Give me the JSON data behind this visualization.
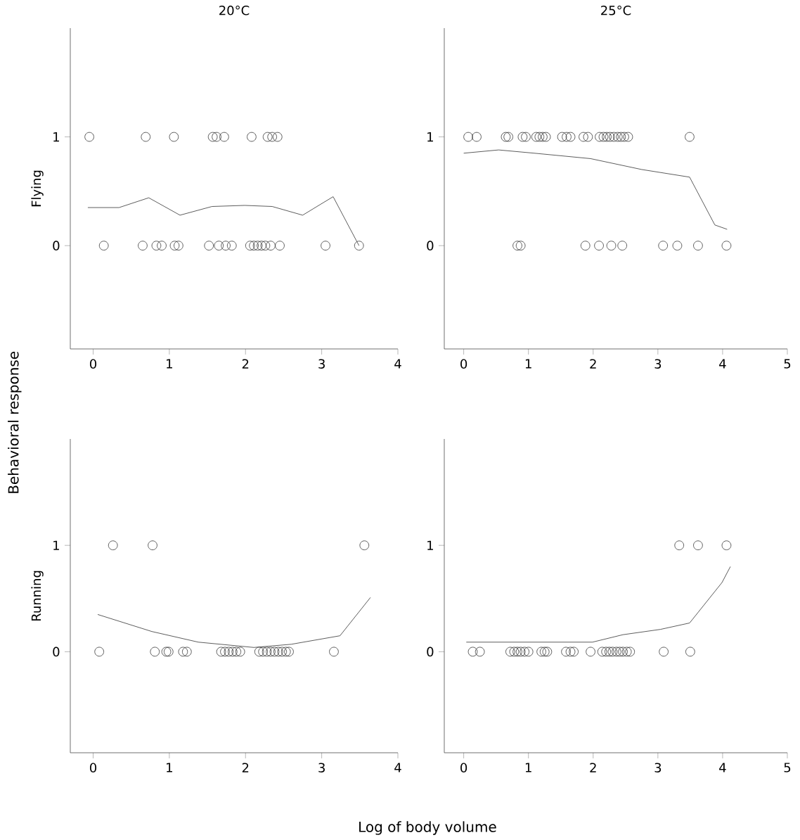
{
  "chart_data": [
    {
      "type": "scatter",
      "title": "20°C",
      "ylabel": "Flying",
      "annotations": [
        "Behavioral response"
      ],
      "xlim": [
        -0.3,
        4
      ],
      "ylim": [
        -0.95,
        2
      ],
      "xticks": [
        0,
        1,
        2,
        3,
        4
      ],
      "yticks": [
        0,
        1
      ],
      "series": [
        {
          "type": "scatter",
          "marker": "circle",
          "color": "#333333",
          "x": [
            -0.05,
            0.69,
            1.06,
            1.57,
            1.62,
            1.72,
            2.08,
            2.29,
            2.35,
            2.42,
            0.14,
            0.65,
            0.83,
            0.9,
            1.07,
            1.12,
            1.52,
            1.65,
            1.74,
            1.82,
            2.06,
            2.11,
            2.16,
            2.21,
            2.26,
            2.33,
            2.45,
            3.05,
            3.49
          ],
          "values": [
            1,
            1,
            1,
            1,
            1,
            1,
            1,
            1,
            1,
            1,
            0,
            0,
            0,
            0,
            0,
            0,
            0,
            0,
            0,
            0,
            0,
            0,
            0,
            0,
            0,
            0,
            0,
            0,
            0
          ]
        },
        {
          "type": "line",
          "marker": "none",
          "color": "#333333",
          "x": [
            -0.07,
            0.34,
            0.73,
            1.14,
            1.56,
            1.99,
            2.35,
            2.75,
            3.15,
            3.49
          ],
          "values": [
            0.35,
            0.35,
            0.44,
            0.28,
            0.36,
            0.37,
            0.36,
            0.28,
            0.45,
            0.0
          ]
        }
      ]
    },
    {
      "type": "scatter",
      "title": "25°C",
      "xlim": [
        -0.3,
        5
      ],
      "ylim": [
        -0.95,
        2
      ],
      "xticks": [
        0,
        1,
        2,
        3,
        4,
        5
      ],
      "yticks": [
        0,
        1
      ],
      "series": [
        {
          "type": "scatter",
          "marker": "circle",
          "color": "#333333",
          "x": [
            0.07,
            0.2,
            0.65,
            0.69,
            0.91,
            0.96,
            1.12,
            1.17,
            1.22,
            1.27,
            1.52,
            1.59,
            1.65,
            1.85,
            1.92,
            2.1,
            2.16,
            2.21,
            2.26,
            2.32,
            2.38,
            2.43,
            2.48,
            2.54,
            3.49,
            0.83,
            0.88,
            1.88,
            2.09,
            2.28,
            2.45,
            3.08,
            3.3,
            3.62,
            4.06
          ],
          "values": [
            1,
            1,
            1,
            1,
            1,
            1,
            1,
            1,
            1,
            1,
            1,
            1,
            1,
            1,
            1,
            1,
            1,
            1,
            1,
            1,
            1,
            1,
            1,
            1,
            1,
            0,
            0,
            0,
            0,
            0,
            0,
            0,
            0,
            0,
            0
          ]
        },
        {
          "type": "line",
          "marker": "none",
          "color": "#333333",
          "x": [
            0.0,
            0.54,
            1.09,
            1.96,
            2.75,
            3.49,
            3.88,
            4.07
          ],
          "values": [
            0.85,
            0.88,
            0.85,
            0.8,
            0.7,
            0.63,
            0.19,
            0.15
          ]
        }
      ]
    },
    {
      "type": "scatter",
      "ylabel": "Running",
      "annotations": [
        "Log of body volume"
      ],
      "xlim": [
        -0.3,
        4
      ],
      "ylim": [
        -0.95,
        2
      ],
      "xticks": [
        0,
        1,
        2,
        3,
        4
      ],
      "yticks": [
        0,
        1
      ],
      "series": [
        {
          "type": "scatter",
          "marker": "circle",
          "color": "#333333",
          "x": [
            0.26,
            0.78,
            3.56,
            0.08,
            0.81,
            0.96,
            0.99,
            1.18,
            1.23,
            1.68,
            1.73,
            1.78,
            1.83,
            1.88,
            1.93,
            2.18,
            2.23,
            2.28,
            2.33,
            2.38,
            2.43,
            2.48,
            2.53,
            2.57,
            3.16
          ],
          "values": [
            1,
            1,
            1,
            0,
            0,
            0,
            0,
            0,
            0,
            0,
            0,
            0,
            0,
            0,
            0,
            0,
            0,
            0,
            0,
            0,
            0,
            0,
            0,
            0,
            0
          ]
        },
        {
          "type": "line",
          "marker": "none",
          "color": "#333333",
          "x": [
            0.06,
            0.77,
            1.38,
            2.11,
            2.6,
            3.24,
            3.64
          ],
          "values": [
            0.35,
            0.19,
            0.09,
            0.04,
            0.07,
            0.15,
            0.51
          ]
        }
      ]
    },
    {
      "type": "scatter",
      "xlim": [
        -0.3,
        5
      ],
      "ylim": [
        -0.95,
        2
      ],
      "xticks": [
        0,
        1,
        2,
        3,
        4,
        5
      ],
      "yticks": [
        0,
        1
      ],
      "series": [
        {
          "type": "scatter",
          "marker": "circle",
          "color": "#333333",
          "x": [
            3.33,
            3.62,
            4.06,
            0.14,
            0.25,
            0.72,
            0.78,
            0.83,
            0.88,
            0.94,
            1.0,
            1.2,
            1.25,
            1.29,
            1.58,
            1.65,
            1.7,
            1.96,
            2.14,
            2.2,
            2.25,
            2.3,
            2.36,
            2.41,
            2.46,
            2.52,
            2.57,
            3.09,
            3.5
          ],
          "values": [
            1,
            1,
            1,
            0,
            0,
            0,
            0,
            0,
            0,
            0,
            0,
            0,
            0,
            0,
            0,
            0,
            0,
            0,
            0,
            0,
            0,
            0,
            0,
            0,
            0,
            0,
            0,
            0,
            0
          ]
        },
        {
          "type": "line",
          "marker": "none",
          "color": "#333333",
          "x": [
            0.04,
            1.99,
            2.46,
            3.04,
            3.49,
            3.99,
            4.12
          ],
          "values": [
            0.09,
            0.09,
            0.16,
            0.21,
            0.27,
            0.65,
            0.8
          ]
        }
      ]
    }
  ]
}
